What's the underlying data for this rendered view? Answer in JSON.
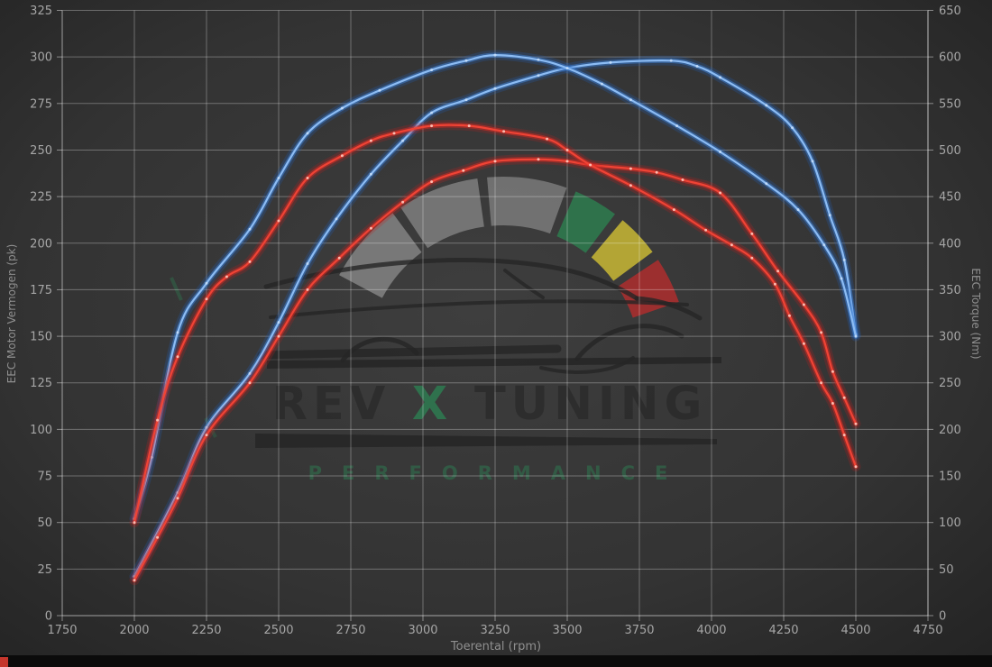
{
  "chart_data": {
    "type": "line",
    "title": "",
    "x_axis": {
      "label": "Toerental (rpm)",
      "min": 1750,
      "max": 4750,
      "tick_step": 250
    },
    "y_left_axis": {
      "label": "EEC Motor Vermogen (pk)",
      "min": 0,
      "max": 325,
      "tick_step": 25
    },
    "y_right_axis": {
      "label": "EEC Torque (Nm)",
      "min": 0,
      "max": 650,
      "tick_step": 50
    },
    "grid": true,
    "legend": "none",
    "series": [
      {
        "name": "torque-original",
        "axis": "right",
        "unit": "Nm",
        "color": "#3f87dd",
        "points": [
          [
            2000,
            42
          ],
          [
            2150,
            132
          ],
          [
            2250,
            202
          ],
          [
            2400,
            260
          ],
          [
            2500,
            315
          ],
          [
            2600,
            378
          ],
          [
            2700,
            426
          ],
          [
            2820,
            474
          ],
          [
            2930,
            510
          ],
          [
            3030,
            540
          ],
          [
            3150,
            554
          ],
          [
            3250,
            566
          ],
          [
            3400,
            580
          ],
          [
            3500,
            588
          ],
          [
            3650,
            594
          ],
          [
            3860,
            596
          ],
          [
            3950,
            590
          ],
          [
            4030,
            578
          ],
          [
            4190,
            548
          ],
          [
            4280,
            524
          ],
          [
            4350,
            488
          ],
          [
            4410,
            430
          ],
          [
            4460,
            382
          ],
          [
            4500,
            302
          ]
        ]
      },
      {
        "name": "torque-tuned",
        "axis": "right",
        "unit": "Nm",
        "color": "#3f87dd",
        "points": [
          [
            2000,
            104
          ],
          [
            2060,
            170
          ],
          [
            2150,
            304
          ],
          [
            2250,
            357
          ],
          [
            2400,
            415
          ],
          [
            2500,
            470
          ],
          [
            2600,
            518
          ],
          [
            2720,
            545
          ],
          [
            2850,
            564
          ],
          [
            3030,
            586
          ],
          [
            3150,
            596
          ],
          [
            3250,
            602
          ],
          [
            3400,
            597
          ],
          [
            3500,
            588
          ],
          [
            3620,
            571
          ],
          [
            3720,
            554
          ],
          [
            3880,
            526
          ],
          [
            4030,
            498
          ],
          [
            4190,
            464
          ],
          [
            4300,
            436
          ],
          [
            4390,
            398
          ],
          [
            4450,
            362
          ],
          [
            4500,
            300
          ]
        ]
      },
      {
        "name": "power-original",
        "axis": "left",
        "unit": "pk",
        "color": "#e02a22",
        "points": [
          [
            2000,
            19
          ],
          [
            2080,
            42
          ],
          [
            2150,
            63
          ],
          [
            2250,
            97
          ],
          [
            2400,
            125
          ],
          [
            2500,
            150
          ],
          [
            2600,
            175
          ],
          [
            2710,
            192
          ],
          [
            2820,
            208
          ],
          [
            2930,
            222
          ],
          [
            3030,
            233
          ],
          [
            3140,
            239
          ],
          [
            3250,
            244
          ],
          [
            3400,
            245
          ],
          [
            3500,
            244
          ],
          [
            3580,
            242
          ],
          [
            3720,
            240
          ],
          [
            3810,
            238
          ],
          [
            3900,
            234
          ],
          [
            4030,
            227
          ],
          [
            4140,
            205
          ],
          [
            4230,
            185
          ],
          [
            4320,
            167
          ],
          [
            4380,
            152
          ],
          [
            4420,
            131
          ],
          [
            4460,
            117
          ],
          [
            4500,
            103
          ]
        ]
      },
      {
        "name": "power-tuned",
        "axis": "left",
        "unit": "pk",
        "color": "#e02a22",
        "points": [
          [
            2000,
            50
          ],
          [
            2080,
            105
          ],
          [
            2150,
            139
          ],
          [
            2250,
            170
          ],
          [
            2320,
            182
          ],
          [
            2400,
            190
          ],
          [
            2500,
            212
          ],
          [
            2600,
            235
          ],
          [
            2720,
            247
          ],
          [
            2820,
            255
          ],
          [
            2900,
            259
          ],
          [
            3030,
            263
          ],
          [
            3160,
            263
          ],
          [
            3280,
            260
          ],
          [
            3430,
            256
          ],
          [
            3500,
            250
          ],
          [
            3580,
            242
          ],
          [
            3720,
            231
          ],
          [
            3870,
            218
          ],
          [
            3980,
            207
          ],
          [
            4070,
            199
          ],
          [
            4140,
            192
          ],
          [
            4220,
            178
          ],
          [
            4270,
            161
          ],
          [
            4320,
            146
          ],
          [
            4380,
            125
          ],
          [
            4420,
            114
          ],
          [
            4460,
            97
          ],
          [
            4500,
            80
          ]
        ]
      }
    ]
  },
  "watermark": {
    "brand_left": "REV",
    "brand_x": "X",
    "brand_right": "TUNING",
    "subtitle": "PERFORMANCE",
    "dark": "#262626",
    "text_dark": "#2c2c2c",
    "green": "#2e7d52",
    "gauge_grey": "#9e9e9e",
    "gauge_green": "#2e7d4f",
    "gauge_yellow": "#c9b835",
    "gauge_red": "#ae2e2e"
  },
  "colors": {
    "bg_center": "#3e3e3e",
    "bg_edge": "#232323",
    "grid": "rgba(255,255,255,0.30)",
    "spine": "rgba(255,255,255,0.45)",
    "tick_label": "#a6a6a6",
    "axis_title": "#8f8f8f",
    "blue_core": "#8cbcf4",
    "blue_mid": "#3d7fd4",
    "blue_glow": "#1e63c8",
    "blue_dot": "#c2dcfa",
    "red_core": "#f04335",
    "red_mid": "#d92a22",
    "red_glow": "#c81e1e",
    "red_dot": "#ffc6ba",
    "bottom_bar": "#0b0b0b",
    "bottom_accent": "#c5362c"
  }
}
